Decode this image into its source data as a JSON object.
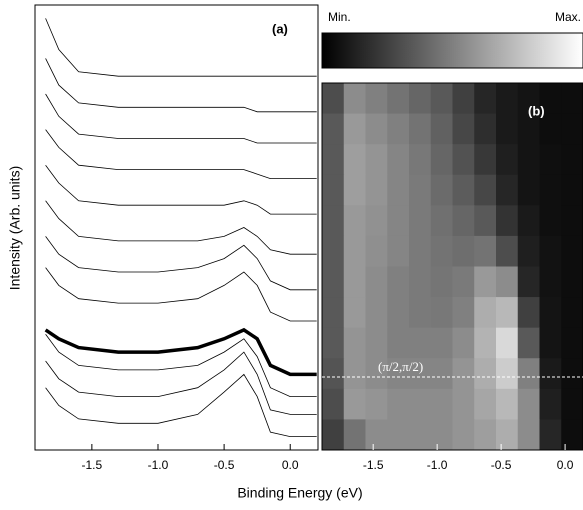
{
  "chart_data": [
    {
      "type": "line",
      "label": "(a)",
      "y_label": "Intensity (Arb. units)",
      "x_label": "Binding Energy (eV)",
      "x": [
        -1.85,
        -1.75,
        -1.6,
        -1.3,
        -1.0,
        -0.7,
        -0.5,
        -0.35,
        -0.25,
        -0.15,
        0.0,
        0.2
      ],
      "xlim": [
        -1.93,
        0.21
      ],
      "xticks": [
        -1.5,
        {
          "value": -1.0,
          "label": "-1.0"
        },
        -0.5,
        {
          "value": 0.0,
          "label": "0.0"
        }
      ],
      "ylim": [
        0,
        100
      ],
      "series": [
        {
          "color": "#000000",
          "width": 0.8,
          "values": [
            97,
            90,
            85,
            84,
            84,
            84,
            84,
            84,
            84,
            84,
            84,
            84
          ]
        },
        {
          "color": "#000000",
          "width": 0.8,
          "values": [
            88,
            82,
            78,
            77,
            77,
            77,
            77,
            77,
            76,
            76,
            76,
            76
          ]
        },
        {
          "color": "#000000",
          "width": 0.8,
          "values": [
            80,
            75,
            71,
            70,
            70,
            70,
            70,
            70,
            69,
            69,
            69,
            69
          ]
        },
        {
          "color": "#000000",
          "width": 0.8,
          "values": [
            72,
            68,
            64,
            63,
            63,
            63,
            63,
            63,
            62,
            61,
            61,
            61
          ]
        },
        {
          "color": "#000000",
          "width": 0.8,
          "values": [
            64,
            60,
            56,
            55,
            55,
            55,
            55,
            56,
            55,
            53,
            53,
            53
          ]
        },
        {
          "color": "#000000",
          "width": 0.8,
          "values": [
            56,
            52,
            48,
            47,
            47,
            47,
            48,
            50,
            48,
            45,
            44,
            44
          ]
        },
        {
          "color": "#000000",
          "width": 0.8,
          "values": [
            48,
            44,
            41,
            40,
            40,
            41,
            43,
            46,
            43,
            38,
            36,
            36
          ]
        },
        {
          "color": "#000000",
          "width": 0.8,
          "values": [
            41,
            37,
            34,
            33,
            33,
            34,
            37,
            40,
            37,
            31,
            29,
            29
          ]
        },
        {
          "color": "#000000",
          "width": 3.5,
          "values": [
            27,
            25,
            23,
            22,
            22,
            23,
            25,
            27,
            25,
            19,
            17,
            17
          ]
        },
        {
          "color": "#000000",
          "width": 0.8,
          "values": [
            26,
            22,
            19,
            18,
            18,
            19,
            22,
            25,
            21,
            14,
            12,
            12
          ]
        },
        {
          "color": "#000000",
          "width": 0.8,
          "values": [
            20,
            16,
            13,
            12,
            12,
            14,
            18,
            22,
            17,
            9,
            8,
            8
          ]
        },
        {
          "color": "#000000",
          "width": 0.8,
          "values": [
            14,
            10,
            7,
            6,
            6,
            8,
            13,
            17,
            12,
            4,
            3,
            3
          ]
        }
      ]
    },
    {
      "type": "heatmap",
      "label": "(b)",
      "annotation": "(π/2,π/2)",
      "colorbar_min": "Min.",
      "colorbar_max": "Max.",
      "xlim": [
        -1.9,
        0.14
      ],
      "xticks": [
        -1.5,
        {
          "value": -1.0,
          "label": "-1.0"
        },
        -0.5,
        {
          "value": 0.0,
          "label": "0.0"
        }
      ],
      "zlim": [
        0,
        1
      ],
      "z": [
        [
          0.3,
          0.55,
          0.5,
          0.45,
          0.4,
          0.35,
          0.25,
          0.15,
          0.1,
          0.08,
          0.05,
          0.05
        ],
        [
          0.35,
          0.6,
          0.55,
          0.5,
          0.45,
          0.38,
          0.28,
          0.18,
          0.1,
          0.08,
          0.05,
          0.05
        ],
        [
          0.35,
          0.62,
          0.58,
          0.52,
          0.47,
          0.4,
          0.32,
          0.22,
          0.12,
          0.08,
          0.06,
          0.05
        ],
        [
          0.35,
          0.62,
          0.58,
          0.52,
          0.48,
          0.42,
          0.36,
          0.28,
          0.15,
          0.08,
          0.06,
          0.05
        ],
        [
          0.35,
          0.6,
          0.57,
          0.52,
          0.48,
          0.44,
          0.4,
          0.35,
          0.2,
          0.1,
          0.06,
          0.05
        ],
        [
          0.35,
          0.6,
          0.56,
          0.52,
          0.48,
          0.45,
          0.43,
          0.45,
          0.3,
          0.12,
          0.07,
          0.05
        ],
        [
          0.35,
          0.6,
          0.55,
          0.5,
          0.48,
          0.46,
          0.48,
          0.6,
          0.55,
          0.15,
          0.07,
          0.05
        ],
        [
          0.35,
          0.6,
          0.55,
          0.5,
          0.48,
          0.47,
          0.5,
          0.68,
          0.72,
          0.25,
          0.08,
          0.05
        ],
        [
          0.35,
          0.58,
          0.55,
          0.5,
          0.5,
          0.5,
          0.55,
          0.7,
          0.85,
          0.35,
          0.08,
          0.05
        ],
        [
          0.33,
          0.58,
          0.55,
          0.52,
          0.52,
          0.52,
          0.58,
          0.68,
          0.8,
          0.5,
          0.1,
          0.05
        ],
        [
          0.3,
          0.6,
          0.58,
          0.55,
          0.55,
          0.55,
          0.58,
          0.65,
          0.72,
          0.55,
          0.12,
          0.05
        ],
        [
          0.25,
          0.45,
          0.55,
          0.55,
          0.55,
          0.55,
          0.58,
          0.62,
          0.68,
          0.55,
          0.15,
          0.05
        ]
      ]
    }
  ]
}
